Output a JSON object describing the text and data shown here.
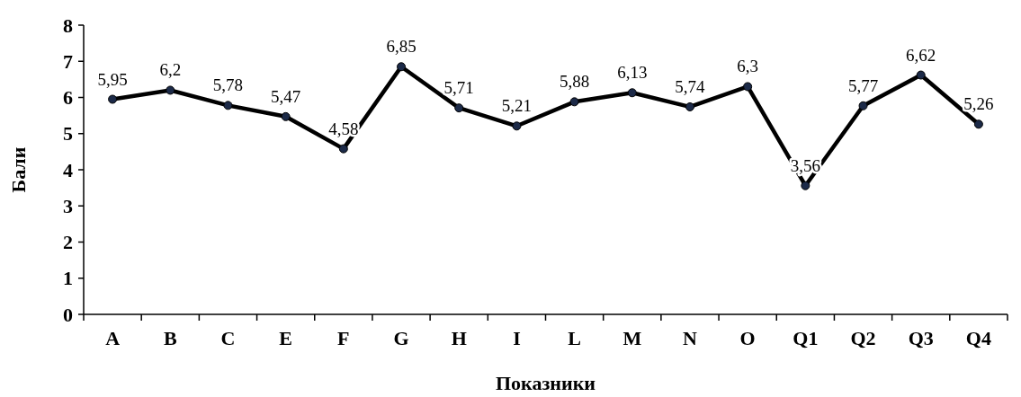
{
  "chart_data": {
    "type": "line",
    "xlabel": "Показники",
    "ylabel": "Бали",
    "categories": [
      "A",
      "B",
      "C",
      "E",
      "F",
      "G",
      "H",
      "I",
      "L",
      "M",
      "N",
      "O",
      "Q1",
      "Q2",
      "Q3",
      "Q4"
    ],
    "series": [
      {
        "color": "#000000",
        "values": [
          5.95,
          6.2,
          5.78,
          5.47,
          4.58,
          6.85,
          5.71,
          5.21,
          5.88,
          6.13,
          5.74,
          6.3,
          3.56,
          5.77,
          6.62,
          5.26
        ],
        "value_labels": [
          "5,95",
          "6,2",
          "5,78",
          "5,47",
          "4,58",
          "6,85",
          "5,71",
          "5,21",
          "5,88",
          "6,13",
          "5,74",
          "6,3",
          "3,56",
          "5,77",
          "6,62",
          "5,26"
        ]
      }
    ],
    "ylim": [
      0,
      8
    ],
    "yticks": [
      0,
      1,
      2,
      3,
      4,
      5,
      6,
      7,
      8
    ],
    "grid": false,
    "marker": "circle",
    "line_style": "solid"
  }
}
